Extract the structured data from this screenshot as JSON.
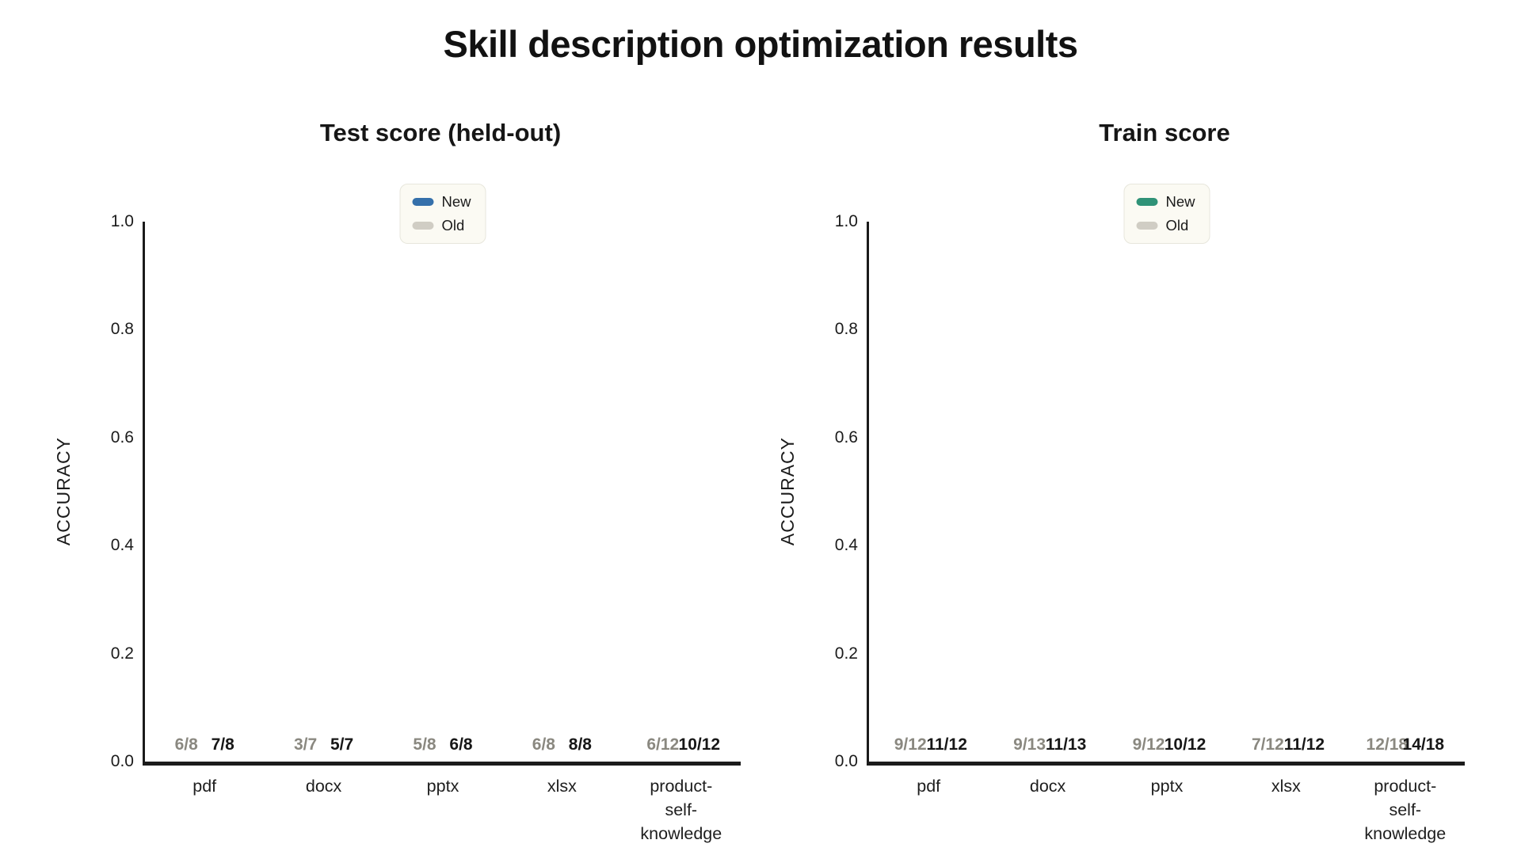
{
  "title": "Skill description optimization results",
  "ylabel": "ACCURACY",
  "yticks": [
    "0.0",
    "0.2",
    "0.4",
    "0.6",
    "0.8",
    "1.0"
  ],
  "legend": {
    "items": [
      "New",
      "Old"
    ]
  },
  "colors": {
    "background": "#ffffff",
    "axis": "#1b1b1b",
    "bar_old": "#d0cdc4",
    "bar_new_test": "#3570ab",
    "bar_new_train": "#2f9277",
    "label_new": "#171717",
    "label_old": "#8a8880",
    "legend_bg": "#fbfaf3",
    "legend_border": "#e7e6dc"
  },
  "chart_data": [
    {
      "type": "bar",
      "title": "Test score (held-out)",
      "xlabel": "",
      "ylabel": "ACCURACY",
      "ylim": [
        0,
        1.0
      ],
      "grid": false,
      "legend_position": "upper center",
      "categories": [
        "pdf",
        "docx",
        "pptx",
        "xlsx",
        "product-\nself-knowledge"
      ],
      "series": [
        {
          "name": "New",
          "color": "#3570ab",
          "label_color": "#171717",
          "values": [
            0.875,
            0.714,
            0.75,
            1.0,
            0.833
          ],
          "labels": [
            "7/8",
            "5/7",
            "6/8",
            "8/8",
            "10/12"
          ]
        },
        {
          "name": "Old",
          "color": "#d0cdc4",
          "label_color": "#8a8880",
          "values": [
            0.75,
            0.429,
            0.625,
            0.75,
            0.5
          ],
          "labels": [
            "6/8",
            "3/7",
            "5/8",
            "6/8",
            "6/12"
          ]
        }
      ]
    },
    {
      "type": "bar",
      "title": "Train score",
      "xlabel": "",
      "ylabel": "ACCURACY",
      "ylim": [
        0,
        1.0
      ],
      "grid": false,
      "legend_position": "upper center",
      "categories": [
        "pdf",
        "docx",
        "pptx",
        "xlsx",
        "product-\nself-knowledge"
      ],
      "series": [
        {
          "name": "New",
          "color": "#2f9277",
          "label_color": "#171717",
          "values": [
            0.917,
            0.846,
            0.833,
            0.917,
            0.778
          ],
          "labels": [
            "11/12",
            "11/13",
            "10/12",
            "11/12",
            "14/18"
          ]
        },
        {
          "name": "Old",
          "color": "#d0cdc4",
          "label_color": "#8a8880",
          "values": [
            0.75,
            0.692,
            0.75,
            0.583,
            0.667
          ],
          "labels": [
            "9/12",
            "9/13",
            "9/12",
            "7/12",
            "12/18"
          ]
        }
      ]
    }
  ]
}
